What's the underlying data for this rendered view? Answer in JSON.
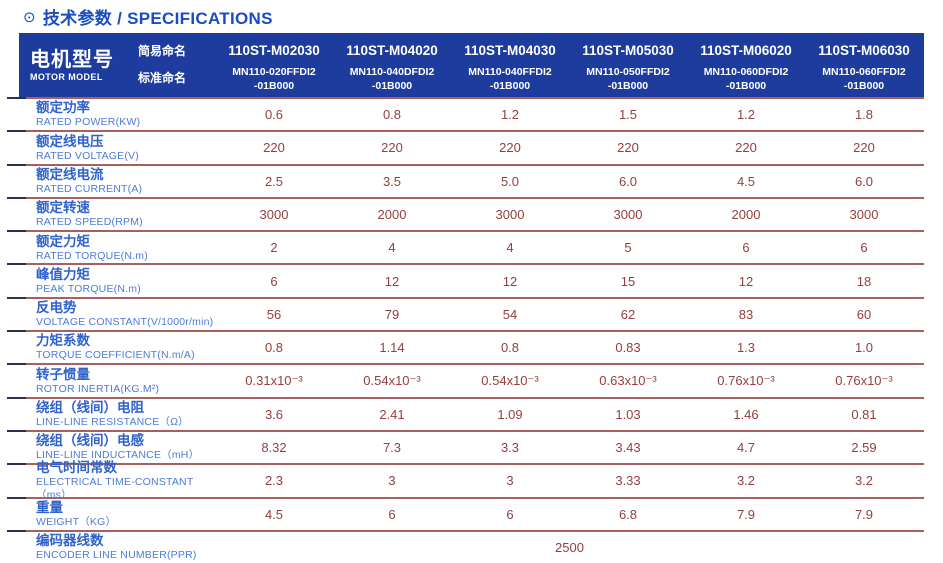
{
  "page": {
    "title_icon": "⊙",
    "title": "技术参数 / SPECIFICATIONS"
  },
  "colors": {
    "title_blue": "#1a4dc2",
    "header_bg": "#1d3c9e",
    "header_text": "#ffffff",
    "label_cn_blue": "#2f63cb",
    "label_en_blue": "#4d7bd8",
    "value_maroon": "#93403f",
    "divider_maroon": "#a56060",
    "divider_cap_navy": "#263250"
  },
  "header": {
    "row_title_cn": "电机型号",
    "row_title_en": "MOTOR MODEL",
    "simple_name_label": "简易命名",
    "standard_name_label": "标准命名",
    "models": [
      {
        "simple": "110ST-M02030",
        "standard": "MN110-020FFDI2\n-01B000"
      },
      {
        "simple": "110ST-M04020",
        "standard": "MN110-040DFDI2\n-01B000"
      },
      {
        "simple": "110ST-M04030",
        "standard": "MN110-040FFDI2\n-01B000"
      },
      {
        "simple": "110ST-M05030",
        "standard": "MN110-050FFDI2\n-01B000"
      },
      {
        "simple": "110ST-M06020",
        "standard": "MN110-060DFDI2\n-01B000"
      },
      {
        "simple": "110ST-M06030",
        "standard": "MN110-060FFDI2\n-01B000"
      }
    ]
  },
  "rows": [
    {
      "cn": "额定功率",
      "en": "RATED POWER(KW)",
      "values": [
        "0.6",
        "0.8",
        "1.2",
        "1.5",
        "1.2",
        "1.8"
      ]
    },
    {
      "cn": "额定线电压",
      "en": "RATED VOLTAGE(V)",
      "values": [
        "220",
        "220",
        "220",
        "220",
        "220",
        "220"
      ]
    },
    {
      "cn": "额定线电流",
      "en": "RATED CURRENT(A)",
      "values": [
        "2.5",
        "3.5",
        "5.0",
        "6.0",
        "4.5",
        "6.0"
      ]
    },
    {
      "cn": "额定转速",
      "en": "RATED SPEED(RPM)",
      "values": [
        "3000",
        "2000",
        "3000",
        "3000",
        "2000",
        "3000"
      ]
    },
    {
      "cn": "额定力矩",
      "en": "RATED TORQUE(N.m)",
      "values": [
        "2",
        "4",
        "4",
        "5",
        "6",
        "6"
      ]
    },
    {
      "cn": "峰值力矩",
      "en": "PEAK TORQUE(N.m)",
      "values": [
        "6",
        "12",
        "12",
        "15",
        "12",
        "18"
      ]
    },
    {
      "cn": "反电势",
      "en": "VOLTAGE CONSTANT(V/1000r/min)",
      "values": [
        "56",
        "79",
        "54",
        "62",
        "83",
        "60"
      ]
    },
    {
      "cn": "力矩系数",
      "en": "TORQUE COEFFICIENT(N.m/A)",
      "values": [
        "0.8",
        "1.14",
        "0.8",
        "0.83",
        "1.3",
        "1.0"
      ]
    },
    {
      "cn": "转子惯量",
      "en": "ROTOR INERTIA(KG.M²)",
      "values": [
        "0.31x10⁻³",
        "0.54x10⁻³",
        "0.54x10⁻³",
        "0.63x10⁻³",
        "0.76x10⁻³",
        "0.76x10⁻³"
      ]
    },
    {
      "cn": "绕组（线间）电阻",
      "en": "LINE-LINE RESISTANCE（Ω）",
      "values": [
        "3.6",
        "2.41",
        "1.09",
        "1.03",
        "1.46",
        "0.81"
      ]
    },
    {
      "cn": "绕组（线间）电感",
      "en": "LINE-LINE INDUCTANCE（mH）",
      "values": [
        "8.32",
        "7.3",
        "3.3",
        "3.43",
        "4.7",
        "2.59"
      ]
    },
    {
      "cn": "电气时间常数",
      "en": "ELECTRICAL TIME-CONSTANT（ms）",
      "values": [
        "2.3",
        "3",
        "3",
        "3.33",
        "3.2",
        "3.2"
      ]
    },
    {
      "cn": "重量",
      "en": "WEIGHT（KG）",
      "values": [
        "4.5",
        "6",
        "6",
        "6.8",
        "7.9",
        "7.9"
      ]
    },
    {
      "cn": "编码器线数",
      "en": "ENCODER LINE NUMBER(PPR)",
      "span_value": "2500"
    }
  ]
}
